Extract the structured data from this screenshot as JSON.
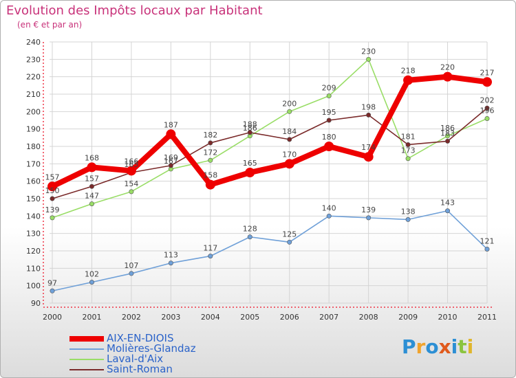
{
  "title": "Evolution des Impôts locaux par Habitant",
  "subtitle": "(en € et par an)",
  "logo": {
    "text": "Proxiti",
    "letters": [
      "P",
      "r",
      "o",
      "x",
      "i",
      "t",
      "i"
    ],
    "colors": [
      "#2c8fd4",
      "#f0a32c",
      "#2c8fd4",
      "#e05a1c",
      "#2c8fd4",
      "#8bc43f",
      "#e0b62c"
    ]
  },
  "chart_data": {
    "type": "line",
    "title": "Evolution des Impôts locaux par Habitant",
    "subtitle": "(en € et par an)",
    "xlabel": "",
    "ylabel": "",
    "ylim": [
      90,
      240
    ],
    "y_ticks": [
      90,
      100,
      110,
      120,
      130,
      140,
      150,
      160,
      170,
      180,
      190,
      200,
      210,
      220,
      230,
      240
    ],
    "x": [
      "2000",
      "2001",
      "2002",
      "2003",
      "2004",
      "2005",
      "2006",
      "2007",
      "2008",
      "2009",
      "2010",
      "2011"
    ],
    "grid": true,
    "legend_position": "bottom-left",
    "series": [
      {
        "name": "AIX-EN-DIOIS",
        "color": "#ee0000",
        "values": [
          157,
          168,
          166,
          187,
          158,
          165,
          170,
          180,
          174,
          218,
          220,
          217
        ],
        "labels": [
          "157",
          "168",
          "166",
          "187",
          "158",
          "165",
          "170",
          "180",
          "174",
          "218",
          "220",
          "217"
        ]
      },
      {
        "name": "Molières-Glandaz",
        "color": "#6fa0d8",
        "values": [
          97,
          102,
          107,
          113,
          117,
          128,
          125,
          140,
          139,
          138,
          143,
          121
        ],
        "labels": [
          "97",
          "102",
          "107",
          "113",
          "117",
          "128",
          "125",
          "140",
          "139",
          "138",
          "143",
          "121"
        ]
      },
      {
        "name": "Laval-d'Aix",
        "color": "#99dd66",
        "values": [
          139,
          147,
          154,
          167,
          172,
          186,
          200,
          209,
          230,
          173,
          186,
          196
        ],
        "labels": [
          "139",
          "147",
          "154",
          "167",
          "172",
          "186",
          "200",
          "209",
          "230",
          "173",
          "186",
          "196"
        ]
      },
      {
        "name": "Saint-Roman",
        "color": "#7a2a2a",
        "values": [
          150,
          157,
          165,
          169,
          182,
          188,
          184,
          195,
          198,
          181,
          183,
          202
        ],
        "labels": [
          "150",
          "157",
          "165",
          "169",
          "182",
          "188",
          "184",
          "195",
          "198",
          "181",
          "183",
          "202"
        ]
      }
    ]
  }
}
